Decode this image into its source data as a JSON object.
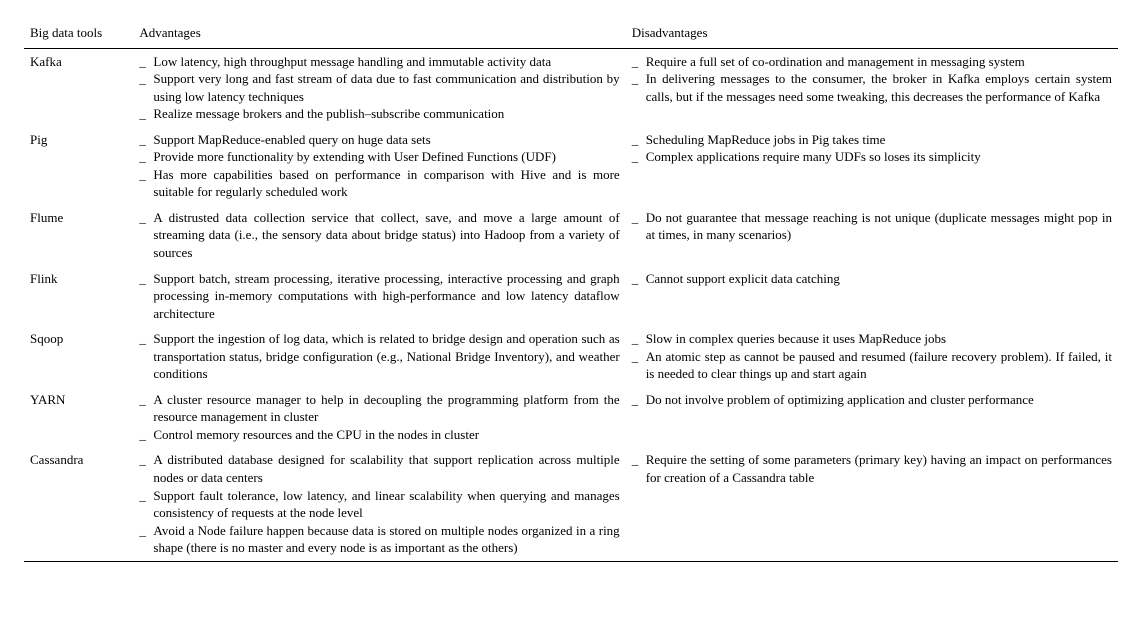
{
  "headers": {
    "tool": "Big data tools",
    "advantages": "Advantages",
    "disadvantages": "Disadvantages"
  },
  "bullet": "_",
  "rows": [
    {
      "tool": "Kafka",
      "advantages": [
        "Low latency, high throughput message handling and immutable activity data",
        "Support very long and fast stream of data due to fast communication and distribution by using low latency techniques",
        "Realize message brokers and the publish–subscribe communication"
      ],
      "disadvantages": [
        "Require a full set of co-ordination and management in messaging system",
        "In delivering messages to the consumer, the broker in Kafka employs certain system calls, but if the messages need some tweaking, this decreases the performance of Kafka"
      ]
    },
    {
      "tool": "Pig",
      "advantages": [
        "Support MapReduce-enabled query on huge data sets",
        "Provide more functionality by extending with User Defined Functions (UDF)",
        "Has more capabilities based on performance in comparison with Hive and is more suitable for regularly scheduled work"
      ],
      "disadvantages": [
        "Scheduling MapReduce jobs in Pig takes time",
        "Complex applications require many UDFs so loses its simplicity"
      ]
    },
    {
      "tool": "Flume",
      "advantages": [
        "A distrusted data collection service that collect, save, and move a large amount of streaming data (i.e., the sensory data about bridge status) into Hadoop from a variety of sources"
      ],
      "disadvantages": [
        "Do not guarantee that message reaching is not unique (duplicate messages might pop in at times, in many scenarios)"
      ]
    },
    {
      "tool": "Flink",
      "advantages": [
        "Support batch, stream processing, iterative processing, interactive processing and graph processing in-memory computations with high-performance and low latency dataflow architecture"
      ],
      "disadvantages": [
        "Cannot support explicit data catching"
      ]
    },
    {
      "tool": "Sqoop",
      "advantages": [
        "Support the ingestion of log data, which is related to bridge design and operation such as transportation status, bridge configuration (e.g., National Bridge Inventory), and weather conditions"
      ],
      "disadvantages": [
        "Slow in complex queries because it uses MapReduce jobs",
        "An atomic step as cannot be paused and resumed (failure recovery problem). If failed, it is needed to clear things up and start again"
      ]
    },
    {
      "tool": "YARN",
      "advantages": [
        "A cluster resource manager to help in decoupling the programming platform from the resource management in cluster",
        "Control memory resources and the CPU in the nodes in cluster"
      ],
      "disadvantages": [
        "Do not involve problem of optimizing application and cluster performance"
      ]
    },
    {
      "tool": "Cassandra",
      "advantages": [
        "A distributed database designed for scalability that support replication across multiple nodes or data centers",
        "Support fault tolerance, low latency, and linear scalability when querying and manages consistency of requests at the node level",
        "Avoid a Node failure happen because data is stored on multiple nodes organized in a ring shape (there is no master and every node is as important as the others)"
      ],
      "disadvantages": [
        "Require the setting of some parameters (primary key) having an impact on performances for creation of a Cassandra table"
      ]
    }
  ]
}
